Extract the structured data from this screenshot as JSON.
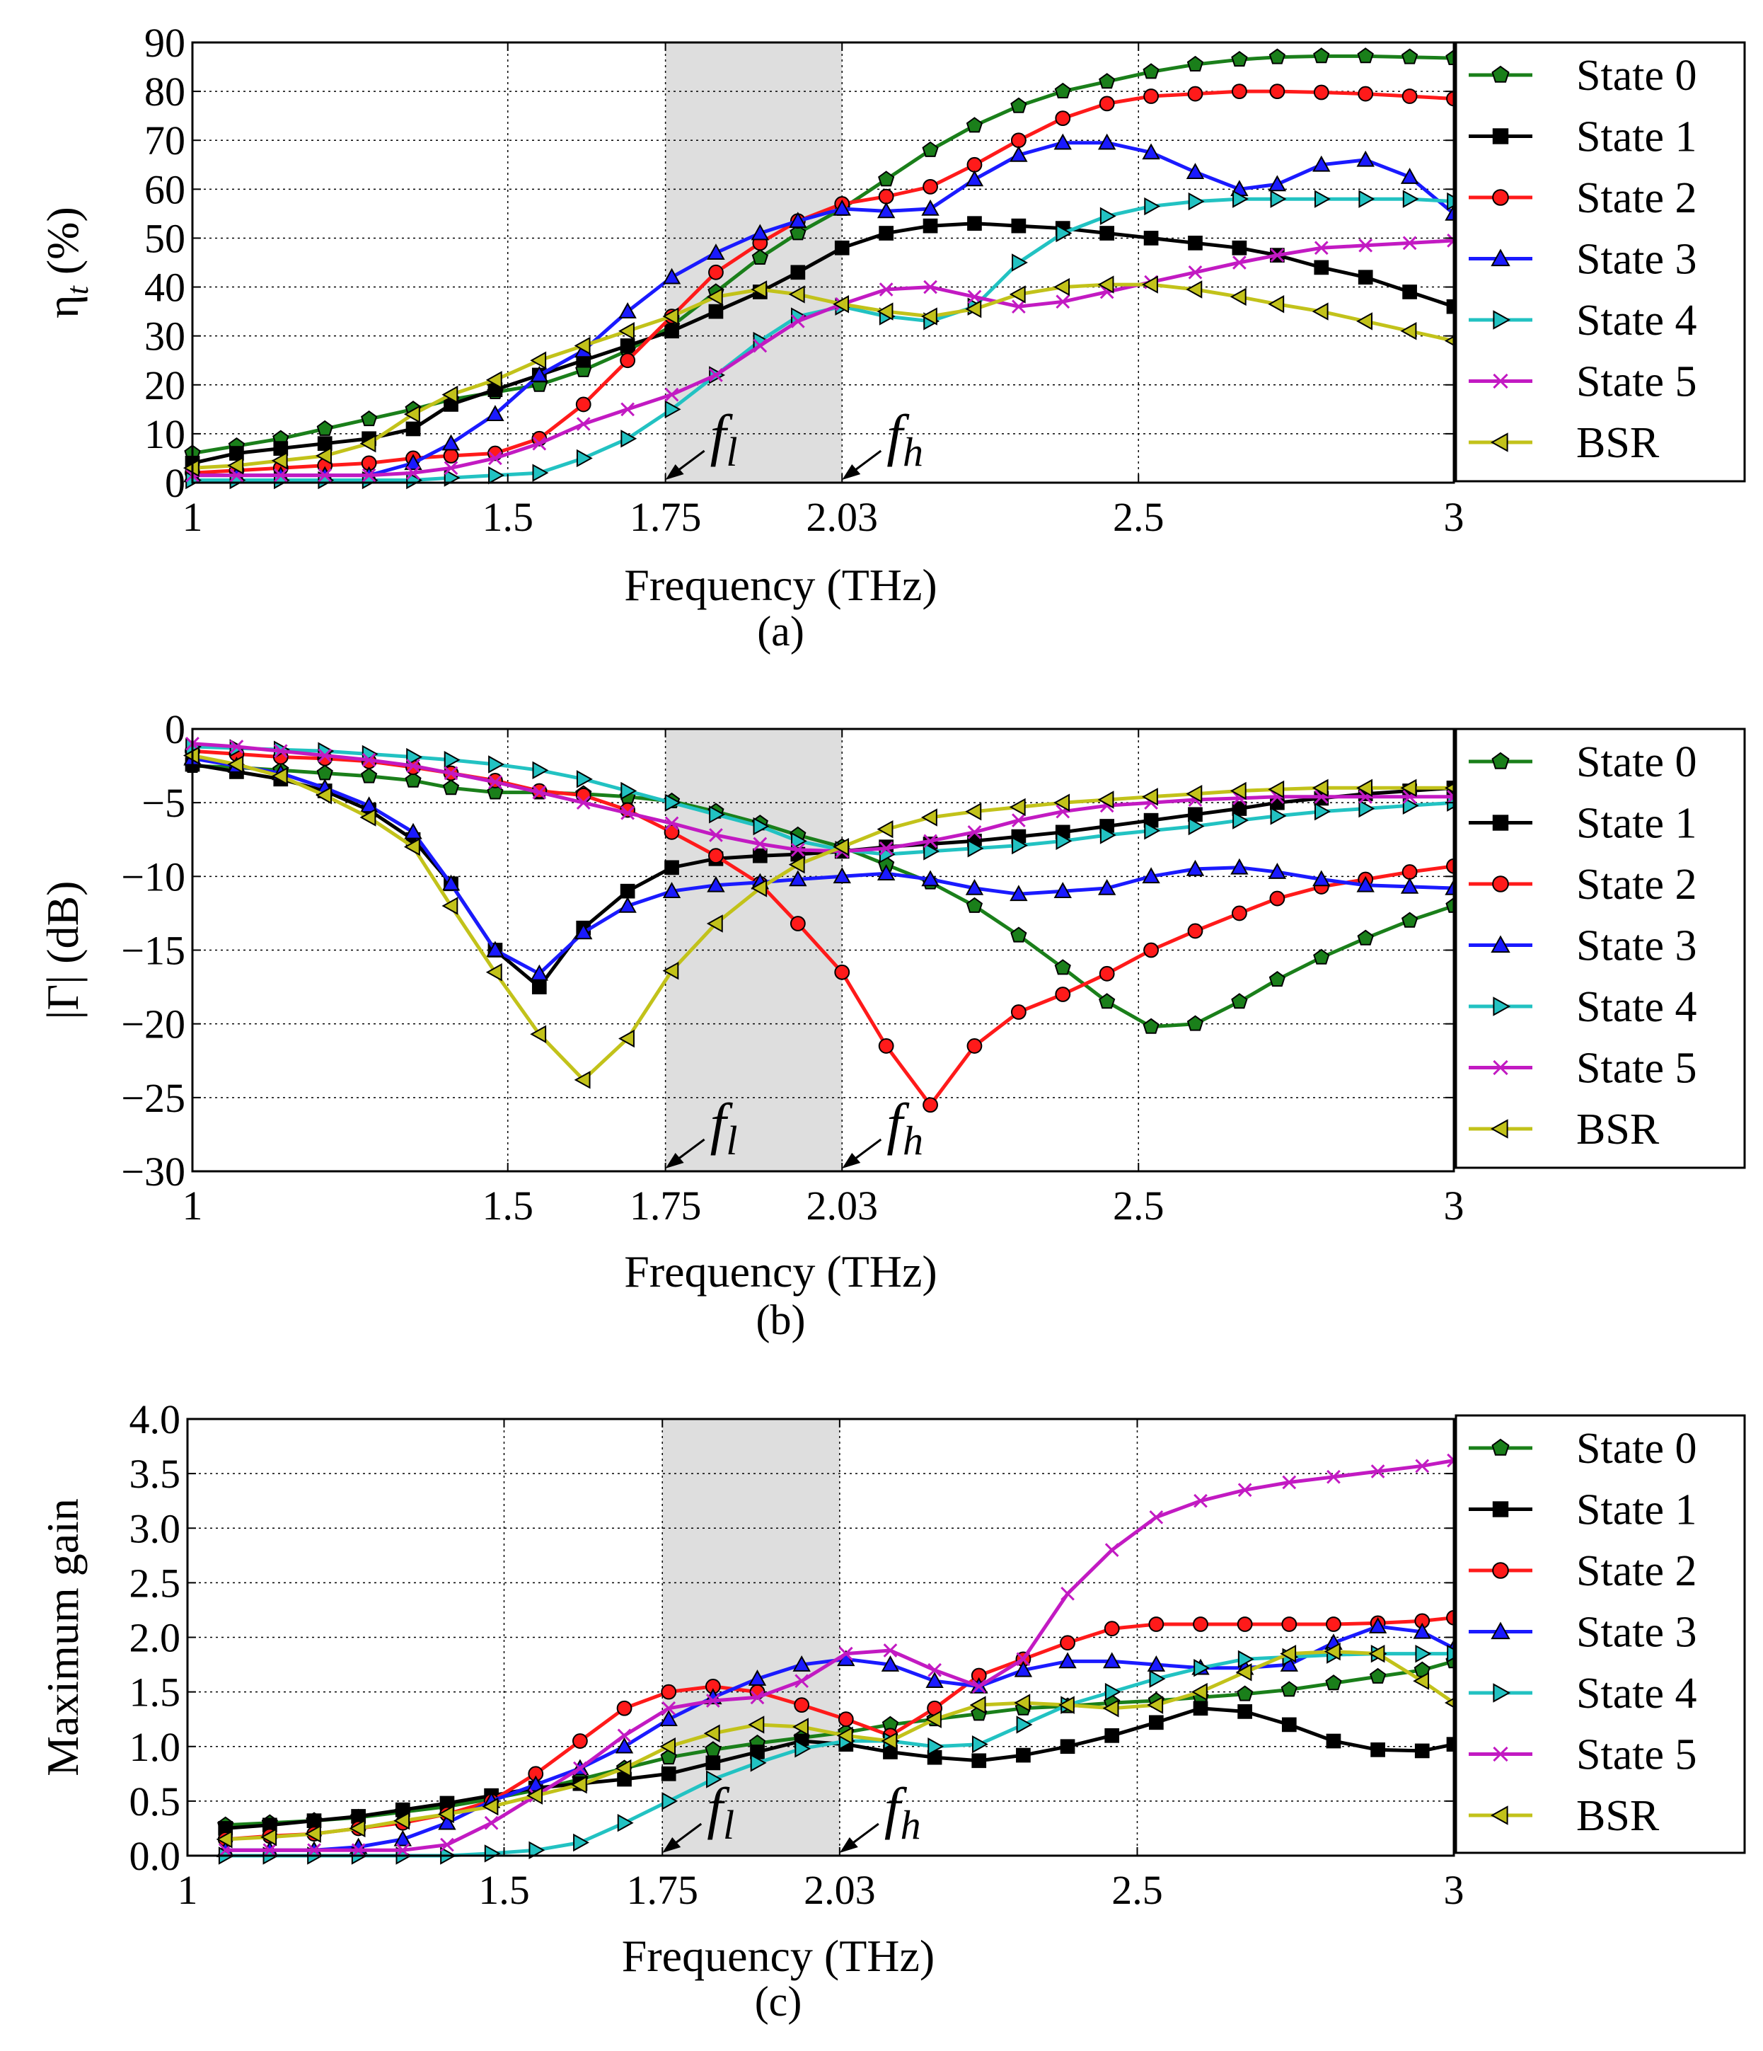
{
  "series_styles": [
    {
      "name": "State 0",
      "color": "#1a7f1a",
      "marker": "pentagon"
    },
    {
      "name": "State 1",
      "color": "#000000",
      "marker": "square"
    },
    {
      "name": "State 2",
      "color": "#ff1a1a",
      "marker": "circle"
    },
    {
      "name": "State 3",
      "color": "#1a1aff",
      "marker": "triangle-up"
    },
    {
      "name": "State 4",
      "color": "#22c2c2",
      "marker": "triangle-right"
    },
    {
      "name": "State 5",
      "color": "#c21ac2",
      "marker": "x"
    },
    {
      "name": "BSR",
      "color": "#c2c21a",
      "marker": "triangle-left"
    }
  ],
  "chart_data": [
    {
      "type": "line",
      "panel_label": "(a)",
      "xlabel": "Frequency (THz)",
      "ylabel": "η",
      "ylabel_sub": "t",
      "ylabel_unit": " (%)",
      "xlim": [
        1,
        3
      ],
      "ylim": [
        0,
        90
      ],
      "xticks": [
        1,
        1.5,
        1.75,
        2.03,
        2.5,
        3
      ],
      "xtick_labels": [
        "1",
        "1.5",
        "1.75",
        "2.03",
        "2.5",
        "3"
      ],
      "yticks": [
        0,
        10,
        20,
        30,
        40,
        50,
        60,
        70,
        80,
        90
      ],
      "ytick_labels": [
        "0",
        "10",
        "20",
        "30",
        "40",
        "50",
        "60",
        "70",
        "80",
        "90"
      ],
      "shaded_band": [
        1.75,
        2.03
      ],
      "annotations": [
        {
          "label": "f",
          "sub": "l",
          "x": 1.75
        },
        {
          "label": "f",
          "sub": "h",
          "x": 2.03
        }
      ],
      "legend_position": "right",
      "grid": true,
      "x": [
        1.0,
        1.07,
        1.14,
        1.21,
        1.28,
        1.35,
        1.41,
        1.48,
        1.55,
        1.62,
        1.69,
        1.76,
        1.83,
        1.9,
        1.96,
        2.03,
        2.1,
        2.17,
        2.24,
        2.31,
        2.38,
        2.45,
        2.52,
        2.59,
        2.66,
        2.72,
        2.79,
        2.86,
        2.93,
        3.0
      ],
      "series": [
        {
          "name": "State 0",
          "values": [
            6,
            7.5,
            9,
            11,
            13,
            15,
            17,
            18.5,
            20,
            23,
            27,
            32,
            39,
            46,
            51,
            56,
            62,
            68,
            73,
            77,
            80,
            82,
            84,
            85.5,
            86.5,
            87,
            87.2,
            87.2,
            87,
            86.8
          ]
        },
        {
          "name": "State 1",
          "values": [
            4,
            6,
            7,
            8,
            9,
            11,
            16,
            19,
            22,
            25,
            28,
            31,
            35,
            39,
            43,
            48,
            51,
            52.5,
            53,
            52.5,
            52,
            51,
            50,
            49,
            48,
            46.5,
            44,
            42,
            39,
            36
          ]
        },
        {
          "name": "State 2",
          "values": [
            2,
            2.5,
            3,
            3.5,
            4,
            5,
            5.5,
            6,
            9,
            16,
            25,
            34,
            43,
            49,
            53.5,
            57,
            58.5,
            60.5,
            65,
            70,
            74.5,
            77.5,
            79,
            79.5,
            80,
            80,
            79.8,
            79.5,
            79,
            78.5
          ]
        },
        {
          "name": "State 3",
          "values": [
            1.5,
            1.5,
            1.5,
            1.5,
            1.5,
            4,
            8,
            14,
            22,
            27,
            35,
            42,
            47,
            51,
            53.5,
            56,
            55.5,
            56,
            62,
            67,
            69.5,
            69.5,
            67.5,
            63.5,
            60,
            61,
            65,
            66,
            62.5,
            55
          ]
        },
        {
          "name": "State 4",
          "values": [
            0.5,
            0.5,
            0.5,
            0.5,
            0.5,
            0.5,
            1,
            1.5,
            2,
            5,
            9,
            15,
            22,
            29,
            34,
            36,
            34,
            33,
            36,
            45,
            51,
            54.5,
            56.5,
            57.5,
            58,
            58,
            58,
            58,
            58,
            57.5
          ]
        },
        {
          "name": "State 5",
          "values": [
            1.5,
            1.5,
            1.5,
            1.5,
            1.5,
            2,
            3,
            5,
            8,
            12,
            15,
            18,
            22,
            28,
            33,
            36.5,
            39.5,
            40,
            38,
            36,
            37,
            39,
            41,
            43,
            45,
            46.5,
            48,
            48.5,
            49,
            49.5
          ]
        },
        {
          "name": "BSR",
          "values": [
            3,
            3.5,
            4.5,
            5.5,
            8,
            14,
            18,
            21,
            25,
            28,
            31,
            34,
            38,
            39.5,
            38.5,
            36.5,
            35,
            34,
            35.5,
            38.5,
            40,
            40.5,
            40.5,
            39.5,
            38,
            36.5,
            35,
            33,
            31,
            29
          ]
        }
      ]
    },
    {
      "type": "line",
      "panel_label": "(b)",
      "xlabel": "Frequency (THz)",
      "ylabel": "|Γ| (dB)",
      "xlim": [
        1,
        3
      ],
      "ylim": [
        -30,
        0
      ],
      "xticks": [
        1,
        1.5,
        1.75,
        2.03,
        2.5,
        3
      ],
      "xtick_labels": [
        "1",
        "1.5",
        "1.75",
        "2.03",
        "2.5",
        "3"
      ],
      "yticks": [
        -30,
        -25,
        -20,
        -15,
        -10,
        -5,
        0
      ],
      "ytick_labels": [
        "−30",
        "−25",
        "−20",
        "−15",
        "−10",
        "−5",
        "0"
      ],
      "shaded_band": [
        1.75,
        2.03
      ],
      "annotations": [
        {
          "label": "f",
          "sub": "l",
          "x": 1.75
        },
        {
          "label": "f",
          "sub": "h",
          "x": 2.03
        }
      ],
      "legend_position": "right",
      "grid": true,
      "x": [
        1.0,
        1.07,
        1.14,
        1.21,
        1.28,
        1.35,
        1.41,
        1.48,
        1.55,
        1.62,
        1.69,
        1.76,
        1.83,
        1.9,
        1.96,
        2.03,
        2.1,
        2.17,
        2.24,
        2.31,
        2.38,
        2.45,
        2.52,
        2.59,
        2.66,
        2.72,
        2.79,
        2.86,
        2.93,
        3.0
      ],
      "series": [
        {
          "name": "State 0",
          "values": [
            -2.5,
            -2.6,
            -2.8,
            -3.0,
            -3.2,
            -3.5,
            -4.0,
            -4.3,
            -4.3,
            -4.4,
            -4.6,
            -4.9,
            -5.6,
            -6.4,
            -7.2,
            -8.0,
            -9.2,
            -10.4,
            -12.0,
            -14.0,
            -16.2,
            -18.5,
            -20.2,
            -20.0,
            -18.5,
            -17.0,
            -15.5,
            -14.2,
            -13.0,
            -12.0
          ]
        },
        {
          "name": "State 1",
          "values": [
            -2.4,
            -2.9,
            -3.4,
            -4.2,
            -5.5,
            -7.5,
            -10.5,
            -15.0,
            -17.5,
            -13.5,
            -11.0,
            -9.4,
            -8.8,
            -8.6,
            -8.5,
            -8.3,
            -8.0,
            -7.8,
            -7.6,
            -7.3,
            -7.0,
            -6.6,
            -6.2,
            -5.8,
            -5.4,
            -5.0,
            -4.7,
            -4.4,
            -4.2,
            -4.0
          ]
        },
        {
          "name": "State 2",
          "values": [
            -1.5,
            -1.7,
            -1.9,
            -2.0,
            -2.2,
            -2.6,
            -3.0,
            -3.5,
            -4.2,
            -4.5,
            -5.5,
            -7.0,
            -8.6,
            -10.5,
            -13.2,
            -16.5,
            -21.5,
            -25.5,
            -21.5,
            -19.2,
            -18.0,
            -16.6,
            -15.0,
            -13.7,
            -12.5,
            -11.5,
            -10.7,
            -10.2,
            -9.7,
            -9.3
          ]
        },
        {
          "name": "State 3",
          "values": [
            -2.0,
            -2.5,
            -3.0,
            -4.0,
            -5.2,
            -7.0,
            -10.5,
            -15.0,
            -16.6,
            -13.8,
            -12.0,
            -11.0,
            -10.6,
            -10.4,
            -10.2,
            -10.0,
            -9.8,
            -10.2,
            -10.8,
            -11.2,
            -11.0,
            -10.8,
            -10.0,
            -9.5,
            -9.4,
            -9.7,
            -10.2,
            -10.6,
            -10.7,
            -10.8
          ]
        },
        {
          "name": "State 4",
          "values": [
            -1.2,
            -1.3,
            -1.4,
            -1.5,
            -1.7,
            -1.9,
            -2.1,
            -2.4,
            -2.8,
            -3.4,
            -4.2,
            -5.0,
            -5.8,
            -6.6,
            -7.6,
            -8.2,
            -8.5,
            -8.3,
            -8.1,
            -7.9,
            -7.6,
            -7.2,
            -6.9,
            -6.6,
            -6.2,
            -5.9,
            -5.6,
            -5.4,
            -5.2,
            -5.0
          ]
        },
        {
          "name": "State 5",
          "values": [
            -1.0,
            -1.2,
            -1.5,
            -1.8,
            -2.1,
            -2.5,
            -3.0,
            -3.6,
            -4.3,
            -5.0,
            -5.7,
            -6.4,
            -7.2,
            -7.8,
            -8.2,
            -8.3,
            -8.1,
            -7.6,
            -7.0,
            -6.2,
            -5.6,
            -5.2,
            -5.0,
            -4.8,
            -4.7,
            -4.6,
            -4.6,
            -4.6,
            -4.6,
            -4.6
          ]
        },
        {
          "name": "BSR",
          "values": [
            -1.8,
            -2.4,
            -3.2,
            -4.5,
            -6.0,
            -8.0,
            -12.0,
            -16.5,
            -20.7,
            -23.8,
            -21.0,
            -16.4,
            -13.2,
            -10.8,
            -9.2,
            -8.0,
            -6.8,
            -6.0,
            -5.6,
            -5.3,
            -5.0,
            -4.8,
            -4.6,
            -4.4,
            -4.2,
            -4.1,
            -4.0,
            -4.0,
            -4.0,
            -4.0
          ]
        }
      ]
    },
    {
      "type": "line",
      "panel_label": "(c)",
      "xlabel": "Frequency (THz)",
      "ylabel": "Maximum gain",
      "xlim": [
        1,
        3
      ],
      "ylim": [
        0,
        4
      ],
      "xticks": [
        1,
        1.5,
        1.75,
        2.03,
        2.5,
        3
      ],
      "xtick_labels": [
        "1",
        "1.5",
        "1.75",
        "2.03",
        "2.5",
        "3"
      ],
      "yticks": [
        0,
        0.5,
        1,
        1.5,
        2,
        2.5,
        3,
        3.5,
        4
      ],
      "ytick_labels": [
        "0.0",
        "0.5",
        "1.0",
        "1.5",
        "2.0",
        "2.5",
        "3.0",
        "3.5",
        "4.0"
      ],
      "shaded_band": [
        1.75,
        2.03
      ],
      "annotations": [
        {
          "label": "f",
          "sub": "l",
          "x": 1.75
        },
        {
          "label": "f",
          "sub": "h",
          "x": 2.03
        }
      ],
      "legend_position": "right",
      "grid": true,
      "x": [
        1.06,
        1.13,
        1.2,
        1.27,
        1.34,
        1.41,
        1.48,
        1.55,
        1.62,
        1.69,
        1.76,
        1.83,
        1.9,
        1.97,
        2.04,
        2.11,
        2.18,
        2.25,
        2.32,
        2.39,
        2.46,
        2.53,
        2.6,
        2.67,
        2.74,
        2.81,
        2.88,
        2.95,
        3.0
      ],
      "series": [
        {
          "name": "State 0",
          "values": [
            0.28,
            0.3,
            0.32,
            0.35,
            0.4,
            0.45,
            0.52,
            0.6,
            0.7,
            0.8,
            0.9,
            0.97,
            1.03,
            1.08,
            1.13,
            1.2,
            1.25,
            1.3,
            1.35,
            1.37,
            1.4,
            1.42,
            1.45,
            1.48,
            1.52,
            1.58,
            1.64,
            1.7,
            1.78
          ]
        },
        {
          "name": "State 1",
          "values": [
            0.25,
            0.28,
            0.32,
            0.36,
            0.42,
            0.48,
            0.55,
            0.62,
            0.66,
            0.7,
            0.75,
            0.85,
            0.95,
            1.05,
            1.02,
            0.95,
            0.9,
            0.87,
            0.92,
            1.0,
            1.1,
            1.22,
            1.35,
            1.32,
            1.2,
            1.05,
            0.97,
            0.96,
            1.02
          ]
        },
        {
          "name": "State 2",
          "values": [
            0.15,
            0.18,
            0.2,
            0.25,
            0.3,
            0.38,
            0.5,
            0.75,
            1.05,
            1.35,
            1.5,
            1.55,
            1.5,
            1.38,
            1.25,
            1.1,
            1.35,
            1.65,
            1.8,
            1.95,
            2.08,
            2.12,
            2.12,
            2.12,
            2.12,
            2.12,
            2.13,
            2.15,
            2.18
          ]
        },
        {
          "name": "State 3",
          "values": [
            0.05,
            0.05,
            0.05,
            0.08,
            0.15,
            0.3,
            0.5,
            0.65,
            0.8,
            1.0,
            1.25,
            1.45,
            1.62,
            1.75,
            1.8,
            1.75,
            1.6,
            1.55,
            1.7,
            1.78,
            1.78,
            1.75,
            1.72,
            1.72,
            1.75,
            1.95,
            2.1,
            2.05,
            1.9
          ]
        },
        {
          "name": "State 4",
          "values": [
            0.0,
            0.0,
            0.0,
            0.0,
            0.0,
            0.0,
            0.02,
            0.05,
            0.12,
            0.3,
            0.5,
            0.7,
            0.85,
            0.98,
            1.05,
            1.05,
            1.0,
            1.02,
            1.2,
            1.38,
            1.5,
            1.62,
            1.72,
            1.8,
            1.82,
            1.84,
            1.85,
            1.85,
            1.85
          ]
        },
        {
          "name": "State 5",
          "values": [
            0.05,
            0.05,
            0.05,
            0.05,
            0.05,
            0.1,
            0.3,
            0.55,
            0.8,
            1.1,
            1.35,
            1.42,
            1.45,
            1.6,
            1.85,
            1.88,
            1.7,
            1.55,
            1.8,
            2.4,
            2.8,
            3.1,
            3.25,
            3.35,
            3.42,
            3.47,
            3.52,
            3.57,
            3.62
          ]
        },
        {
          "name": "BSR",
          "values": [
            0.15,
            0.17,
            0.2,
            0.25,
            0.32,
            0.38,
            0.45,
            0.55,
            0.65,
            0.8,
            1.0,
            1.12,
            1.2,
            1.18,
            1.1,
            1.05,
            1.25,
            1.38,
            1.4,
            1.38,
            1.35,
            1.38,
            1.5,
            1.68,
            1.85,
            1.87,
            1.85,
            1.6,
            1.4
          ]
        }
      ]
    }
  ]
}
